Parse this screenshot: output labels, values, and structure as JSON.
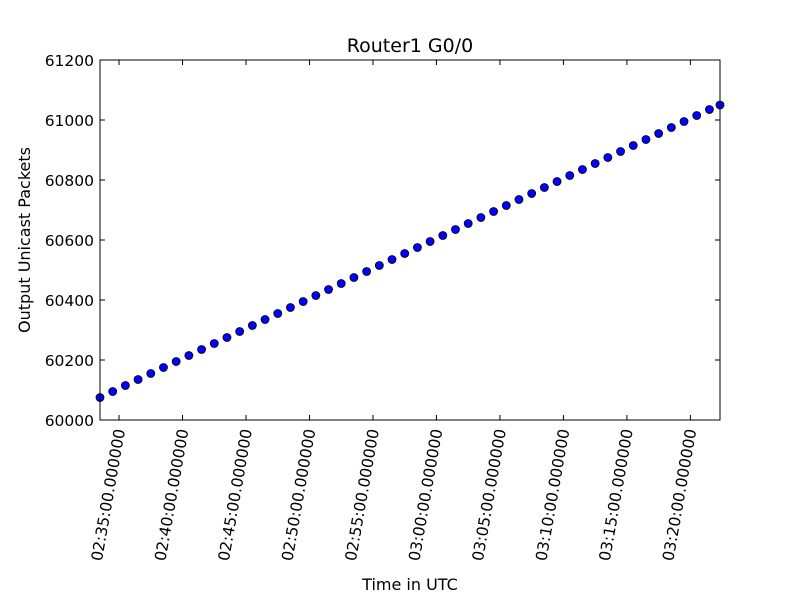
{
  "chart_data": {
    "type": "scatter",
    "title": "Router1 G0/0",
    "xlabel": "Time in UTC",
    "ylabel": "Output Unicast Packets",
    "x_range": [
      "02:33:30",
      "03:22:20"
    ],
    "ylim": [
      60000,
      61200
    ],
    "y_ticks": [
      60000,
      60200,
      60400,
      60600,
      60800,
      61000,
      61200
    ],
    "x_ticks": [
      "02:35:00",
      "02:40:00",
      "02:45:00",
      "02:50:00",
      "02:55:00",
      "03:00:00",
      "03:05:00",
      "03:10:00",
      "03:15:00",
      "03:20:00"
    ],
    "x_tick_labels": [
      "02:35:00.000000",
      "02:40:00.000000",
      "02:45:00.000000",
      "02:50:00.000000",
      "02:55:00.000000",
      "03:00:00.000000",
      "03:05:00.000000",
      "03:10:00.000000",
      "03:15:00.000000",
      "03:20:00.000000"
    ],
    "marker_color": "#0000ff",
    "grid": false,
    "x": [
      "02:33:30",
      "02:34:30",
      "02:35:30",
      "02:36:30",
      "02:37:30",
      "02:38:30",
      "02:39:30",
      "02:40:30",
      "02:41:30",
      "02:42:30",
      "02:43:30",
      "02:44:30",
      "02:45:30",
      "02:46:30",
      "02:47:30",
      "02:48:30",
      "02:49:30",
      "02:50:30",
      "02:51:30",
      "02:52:30",
      "02:53:30",
      "02:54:30",
      "02:55:30",
      "02:56:30",
      "02:57:30",
      "02:58:30",
      "02:59:30",
      "03:00:30",
      "03:01:30",
      "03:02:30",
      "03:03:30",
      "03:04:30",
      "03:05:30",
      "03:06:30",
      "03:07:30",
      "03:08:30",
      "03:09:30",
      "03:10:30",
      "03:11:30",
      "03:12:30",
      "03:13:30",
      "03:14:30",
      "03:15:30",
      "03:16:30",
      "03:17:30",
      "03:18:30",
      "03:19:30",
      "03:20:30",
      "03:21:30",
      "03:22:20"
    ],
    "y": [
      60075,
      60095,
      60115,
      60135,
      60155,
      60175,
      60195,
      60215,
      60235,
      60255,
      60275,
      60295,
      60315,
      60335,
      60355,
      60375,
      60395,
      60415,
      60435,
      60455,
      60475,
      60495,
      60515,
      60535,
      60555,
      60575,
      60595,
      60615,
      60635,
      60655,
      60675,
      60695,
      60715,
      60735,
      60755,
      60775,
      60795,
      60815,
      60835,
      60855,
      60875,
      60895,
      60915,
      60935,
      60955,
      60975,
      60995,
      61015,
      61035,
      61050
    ]
  }
}
